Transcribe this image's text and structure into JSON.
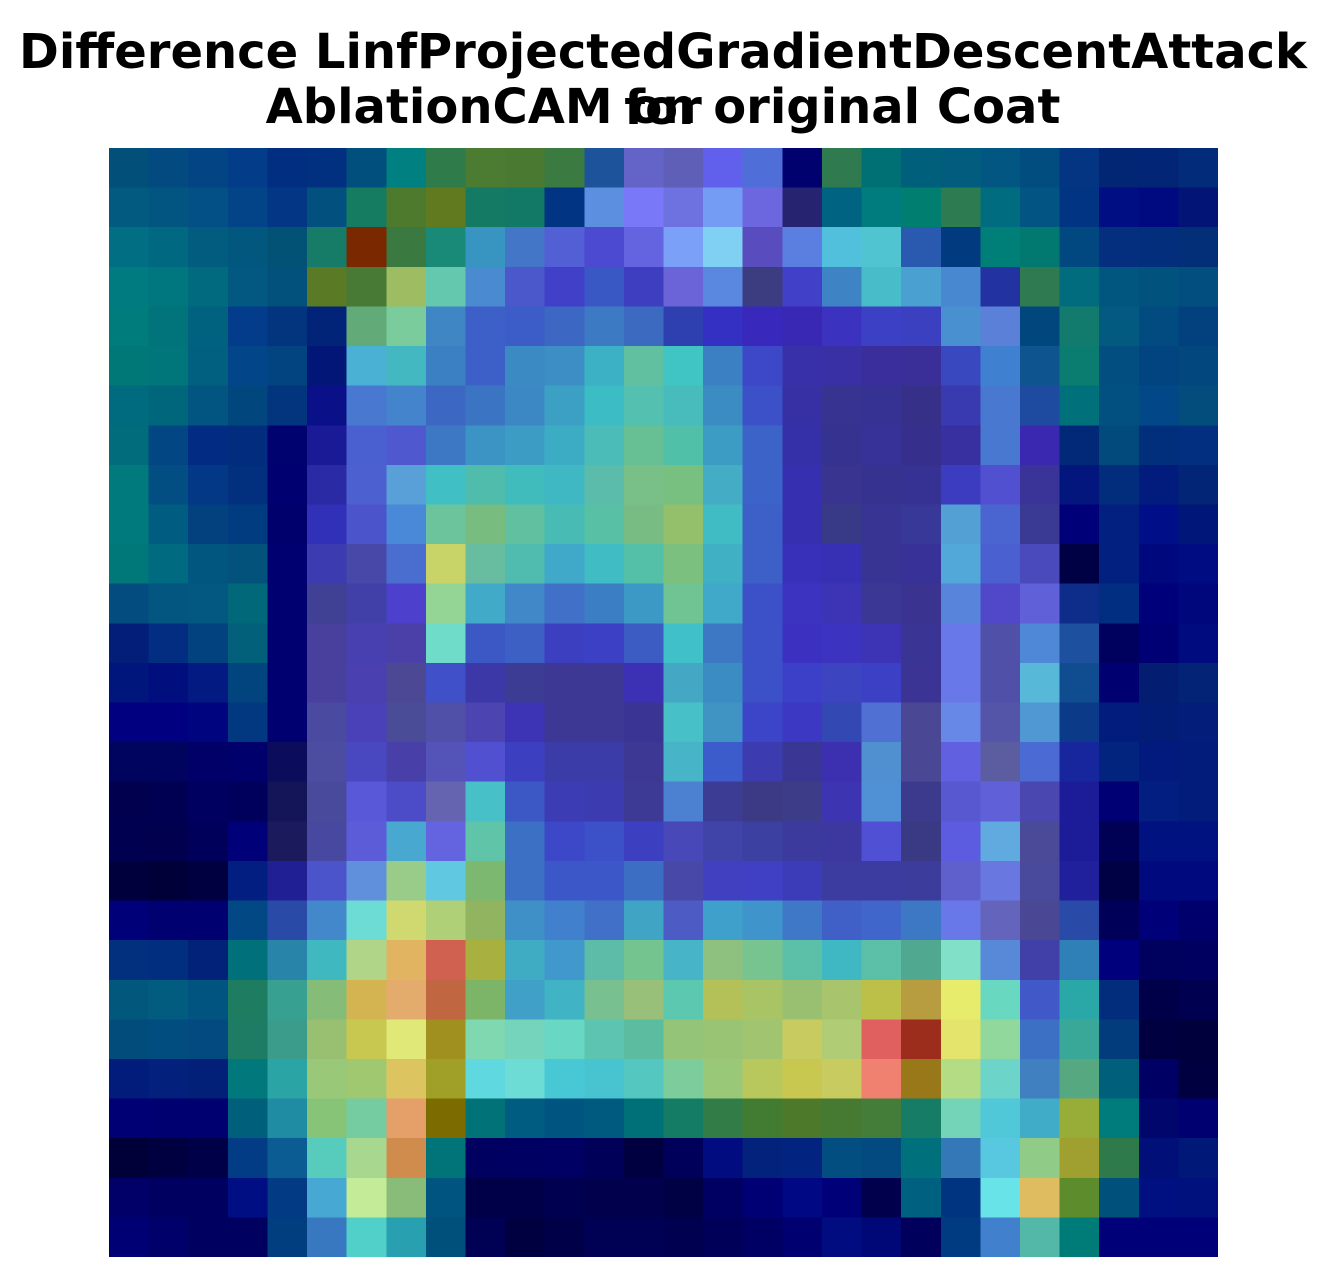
{
  "chart_data": {
    "type": "heatmap",
    "title_lines": [
      "Difference LinfProjectedGradientDescentAttack for",
      "AblationCAM on original Coat"
    ],
    "axes": "off",
    "rows": 28,
    "cols": 28,
    "cells_hex": [
      [
        "#024f7a",
        "#024a80",
        "#034584",
        "#033c88",
        "#022e82",
        "#023080",
        "#014f7c",
        "#008080",
        "#2f7c4a",
        "#4b7c31",
        "#4a7a32",
        "#3b7a40",
        "#1d539b",
        "#6464c8",
        "#605fb8",
        "#6060ec",
        "#506ed8",
        "#00006e",
        "#2f7a4e",
        "#007075",
        "#005f7b",
        "#025c7d",
        "#025782",
        "#024d80",
        "#033582",
        "#022574",
        "#032575",
        "#022c79"
      ],
      [
        "#025a80",
        "#025580",
        "#025085",
        "#034388",
        "#033685",
        "#02507e",
        "#157c62",
        "#4d7a2c",
        "#617a20",
        "#157a64",
        "#127966",
        "#013584",
        "#5c8fdf",
        "#7878f8",
        "#6e72e0",
        "#749cf5",
        "#6c66df",
        "#262470",
        "#006382",
        "#007c7e",
        "#007e70",
        "#2d7b50",
        "#006c80",
        "#025482",
        "#013583",
        "#000e84",
        "#000a80",
        "#021577"
      ],
      [
        "#016e84",
        "#006880",
        "#025c80",
        "#02577f",
        "#025276",
        "#167c68",
        "#7a2800",
        "#3a7a40",
        "#1a8a78",
        "#3895c2",
        "#4476c8",
        "#535fd4",
        "#4b4ad0",
        "#6464e0",
        "#7aa0f8",
        "#80d0f4",
        "#584cbe",
        "#5a7fe0",
        "#50c0dc",
        "#50c4d0",
        "#2a5ab0",
        "#023a80",
        "#007e78",
        "#017870",
        "#024880",
        "#032f7e",
        "#022e7c",
        "#022f78"
      ],
      [
        "#007b80",
        "#00767e",
        "#016a7e",
        "#025880",
        "#02507c",
        "#5b7a26",
        "#487a36",
        "#9ebc62",
        "#64c8ae",
        "#4a8ad0",
        "#4a58cc",
        "#4040c8",
        "#3a58c4",
        "#3e3ec0",
        "#6a64d8",
        "#5a88e0",
        "#3c3c80",
        "#4040c8",
        "#3e84c4",
        "#48bcc8",
        "#4aa0d0",
        "#4888d0",
        "#2232a0",
        "#2f7a50",
        "#006c7e",
        "#015680",
        "#02527e",
        "#024e7e"
      ],
      [
        "#007c7c",
        "#00747a",
        "#016280",
        "#023c8a",
        "#03347e",
        "#022478",
        "#62aa78",
        "#7acc9c",
        "#3e86c4",
        "#3c60c8",
        "#3c5cc8",
        "#3c68c4",
        "#3c7ac4",
        "#3c6ac0",
        "#2e40b0",
        "#3430c4",
        "#3828bc",
        "#3828b4",
        "#3c32c0",
        "#3c40c4",
        "#3a40c0",
        "#4890d0",
        "#5a80d8",
        "#02467e",
        "#137a6e",
        "#025a80",
        "#024b80",
        "#02417e"
      ],
      [
        "#007878",
        "#00767a",
        "#016080",
        "#024588",
        "#024480",
        "#021678",
        "#4ab0d4",
        "#44b8c0",
        "#3c80c4",
        "#3c60c8",
        "#3c8ac4",
        "#3c8ec4",
        "#3cb0c4",
        "#60c0a0",
        "#40c4c4",
        "#3c80c4",
        "#3c48c8",
        "#3830a8",
        "#3830a4",
        "#3a2e9c",
        "#3a2e98",
        "#3a48c0",
        "#4080d0",
        "#0e5590",
        "#0a7c70",
        "#024e80",
        "#024480",
        "#02487e"
      ],
      [
        "#006a7e",
        "#00667c",
        "#015580",
        "#02467e",
        "#02357e",
        "#0a1088",
        "#4878d0",
        "#4484cc",
        "#3c68c4",
        "#3c74c4",
        "#3c88c4",
        "#3ca0c4",
        "#3cbcc4",
        "#54c0b0",
        "#48bcbc",
        "#3c8cc4",
        "#3c50c8",
        "#3630a4",
        "#363490",
        "#363294",
        "#363088",
        "#3a3ab0",
        "#4878d0",
        "#1e4aa0",
        "#00707a",
        "#025080",
        "#024888",
        "#024d7c"
      ],
      [
        "#006c7c",
        "#024684",
        "#022c84",
        "#022c7e",
        "#000270",
        "#1a1a96",
        "#4a60d0",
        "#5058d0",
        "#3c78c4",
        "#3c94c4",
        "#3c9cc4",
        "#3cacc4",
        "#4cbcb8",
        "#66c094",
        "#50c0a8",
        "#3c9cc4",
        "#3c64c8",
        "#3630a8",
        "#363290",
        "#363298",
        "#36308c",
        "#3830a0",
        "#4878d0",
        "#3a28b0",
        "#022878",
        "#024a7c",
        "#022f7c",
        "#022f80"
      ],
      [
        "#007a7c",
        "#024e82",
        "#023886",
        "#02307e",
        "#000070",
        "#2a2aa4",
        "#4d60d0",
        "#5aa0d8",
        "#40c0c4",
        "#50bcac",
        "#40bcbc",
        "#40b8c4",
        "#5cbcac",
        "#78c088",
        "#78c080",
        "#44acc4",
        "#3c64c8",
        "#3630b0",
        "#383490",
        "#363290",
        "#363294",
        "#3c3cc0",
        "#5050d0",
        "#3a3498",
        "#02167e",
        "#022c7c",
        "#021c7e",
        "#022576"
      ],
      [
        "#007a7c",
        "#005c80",
        "#02407e",
        "#023c80",
        "#00006c",
        "#3030b8",
        "#4c54cc",
        "#4a88d8",
        "#6cc49c",
        "#78bc80",
        "#60c0a0",
        "#48bcb4",
        "#58c0a4",
        "#78bc84",
        "#94c06c",
        "#40bcc4",
        "#3c60c8",
        "#3630b0",
        "#383a88",
        "#383494",
        "#383898",
        "#52a0d4",
        "#4a64d0",
        "#3a3a94",
        "#000078",
        "#022080",
        "#000e88",
        "#001678"
      ],
      [
        "#00787a",
        "#006a80",
        "#015680",
        "#02527c",
        "#000070",
        "#3c3cb0",
        "#4848a8",
        "#4a6ed0",
        "#c8d468",
        "#68bca0",
        "#50bcb0",
        "#40a8c8",
        "#40bcc4",
        "#54c0a8",
        "#7cc080",
        "#40b0c4",
        "#3c60c8",
        "#3830b8",
        "#3830b4",
        "#383494",
        "#383298",
        "#52a8d8",
        "#4a60d0",
        "#4a4abc",
        "#000044",
        "#022080",
        "#00087e",
        "#000c82"
      ],
      [
        "#024c80",
        "#025680",
        "#025880",
        "#006878",
        "#000070",
        "#404094",
        "#4040a8",
        "#4c40cc",
        "#94d494",
        "#40aac8",
        "#4088c8",
        "#4070c8",
        "#3c7ec4",
        "#3c98c4",
        "#70c494",
        "#40a8c8",
        "#3c50c8",
        "#3c34c0",
        "#3c34b4",
        "#3a3894",
        "#3a3490",
        "#5884dc",
        "#5048c8",
        "#6060d8",
        "#0e2c8a",
        "#012e80",
        "#00007a",
        "#00067c"
      ],
      [
        "#021e78",
        "#022d80",
        "#02427e",
        "#02607a",
        "#000070",
        "#48409c",
        "#4840b0",
        "#4a40a8",
        "#6edcc8",
        "#3c58c4",
        "#3c60c4",
        "#3c40c0",
        "#3c40c4",
        "#3c5cc4",
        "#40c0c8",
        "#3c78c4",
        "#3c50c8",
        "#3c30c0",
        "#3c34c0",
        "#3c34b4",
        "#3a3494",
        "#6878e8",
        "#5050a8",
        "#5088d8",
        "#1e50a0",
        "#00005e",
        "#000074",
        "#000b80"
      ],
      [
        "#00167c",
        "#000e7e",
        "#021a82",
        "#02447e",
        "#000070",
        "#48409c",
        "#4a40b0",
        "#4c4894",
        "#4050c8",
        "#3c38a8",
        "#3c3c94",
        "#3c3894",
        "#3c3894",
        "#3c30b4",
        "#44a8c4",
        "#3c8cc4",
        "#3c50c8",
        "#3c40c8",
        "#3c44c0",
        "#3c40c4",
        "#3c3494",
        "#6878e8",
        "#5050a8",
        "#58b8d8",
        "#104c90",
        "#000070",
        "#031e70",
        "#032476"
      ],
      [
        "#000080",
        "#000080",
        "#00047e",
        "#023880",
        "#000070",
        "#4a4aa0",
        "#4a40b8",
        "#4a4c98",
        "#5050a8",
        "#4c44b0",
        "#3c34b4",
        "#3c3894",
        "#3c3894",
        "#3a3494",
        "#48c0c8",
        "#4094c4",
        "#3c44c8",
        "#3c38c4",
        "#3448b4",
        "#5070d4",
        "#4a4894",
        "#6888e8",
        "#5454a8",
        "#5098d4",
        "#0a3a88",
        "#021c7e",
        "#021d76",
        "#021e7a"
      ],
      [
        "#00045e",
        "#00045e",
        "#000068",
        "#00006c",
        "#0c0c5c",
        "#4c4ca0",
        "#4a48c0",
        "#4840a8",
        "#5454b8",
        "#5050d0",
        "#3c40c0",
        "#3c3ca8",
        "#3c3ca8",
        "#3c3894",
        "#48b4c8",
        "#3c5ccc",
        "#3c3cb0",
        "#3a3694",
        "#3c30b0",
        "#5090d0",
        "#4a4894",
        "#6060e0",
        "#5c5ca0",
        "#4c6ad4",
        "#18269e",
        "#02247e",
        "#021a7e",
        "#021c7c"
      ],
      [
        "#00004e",
        "#000052",
        "#000060",
        "#00005c",
        "#141458",
        "#4a4a9c",
        "#5858d8",
        "#4c4cc8",
        "#6464b0",
        "#48c0c8",
        "#3c58c4",
        "#3c3cb4",
        "#3c3cb0",
        "#3c3a94",
        "#4c80d0",
        "#3c3c94",
        "#3c3a84",
        "#3c3c88",
        "#3c34b0",
        "#5090d4",
        "#3c3a8c",
        "#5858d0",
        "#6060d8",
        "#4a48b0",
        "#1c1c98",
        "#000074",
        "#021e80",
        "#021c7c"
      ],
      [
        "#000050",
        "#00004e",
        "#00005a",
        "#000078",
        "#1a1a5c",
        "#4848a0",
        "#5c5cd8",
        "#48a8d0",
        "#6464e0",
        "#60c4a8",
        "#3c70c4",
        "#3c48c8",
        "#3c50c8",
        "#3c40c0",
        "#4848b8",
        "#4044a8",
        "#3c40a0",
        "#3c3a9c",
        "#3c38a0",
        "#5050d4",
        "#3a3a84",
        "#5c5ce0",
        "#60aae0",
        "#4a4a98",
        "#1c1c98",
        "#000054",
        "#001280",
        "#001280"
      ],
      [
        "#00003c",
        "#000038",
        "#000040",
        "#021e80",
        "#202094",
        "#4c54cc",
        "#6090dc",
        "#98cc88",
        "#60c8e0",
        "#7cb870",
        "#3c70c4",
        "#3c58c8",
        "#3c58c8",
        "#3c6ec4",
        "#4848a8",
        "#4040c0",
        "#4040c4",
        "#3c3cb8",
        "#3c3ca0",
        "#3c3ca0",
        "#3c3c9c",
        "#6060cc",
        "#6878e0",
        "#4a4a9c",
        "#20209c",
        "#000044",
        "#000a7e",
        "#000a7e"
      ],
      [
        "#000078",
        "#000070",
        "#000070",
        "#024884",
        "#2a4aa8",
        "#4488cc",
        "#6cdcd4",
        "#d0d870",
        "#b0d078",
        "#90b460",
        "#4090c8",
        "#4080cc",
        "#4070c8",
        "#40a4c4",
        "#4c5cc4",
        "#40a0cc",
        "#4094cc",
        "#4078c8",
        "#4060c8",
        "#4066cc",
        "#3c78c4",
        "#6878e8",
        "#6464bc",
        "#4a4894",
        "#2a4aa8",
        "#000058",
        "#000078",
        "#00006c"
      ],
      [
        "#02307e",
        "#022e80",
        "#022178",
        "#00707a",
        "#2884a8",
        "#40b8c0",
        "#b0d488",
        "#e0b460",
        "#d06050",
        "#a8b040",
        "#40acc4",
        "#4098cc",
        "#5cbca8",
        "#74c490",
        "#48b4c8",
        "#8ec080",
        "#78c490",
        "#5cc0a8",
        "#40b8c4",
        "#5cc0a8",
        "#50a890",
        "#80e0c8",
        "#5888d8",
        "#4040a8",
        "#3080b8",
        "#00007c",
        "#00005e",
        "#000060"
      ],
      [
        "#02587c",
        "#025c80",
        "#025480",
        "#1e7c60",
        "#38a090",
        "#84bc78",
        "#d4b450",
        "#e4ac6c",
        "#c06640",
        "#7cb468",
        "#40a0c8",
        "#40b4c4",
        "#78c090",
        "#98c078",
        "#5cc8b0",
        "#b4c058",
        "#a8c464",
        "#98c070",
        "#a8c46c",
        "#bcc048",
        "#b89c40",
        "#e8ec6c",
        "#68d8c0",
        "#4058c8",
        "#2aa8a8",
        "#022c7c",
        "#000048",
        "#000050"
      ],
      [
        "#024c7c",
        "#024d80",
        "#024a80",
        "#1e7c64",
        "#3c9c8c",
        "#98c070",
        "#c8c850",
        "#e0e878",
        "#a09020",
        "#80d8b0",
        "#74d4bc",
        "#68d8c4",
        "#5cc4b0",
        "#5cbca0",
        "#94c478",
        "#98c474",
        "#a0c470",
        "#c8cc60",
        "#b0cc74",
        "#e06060",
        "#9c2c1c",
        "#e4e46c",
        "#90d89c",
        "#3c70c4",
        "#3aa898",
        "#023c7c",
        "#000040",
        "#00003c"
      ],
      [
        "#021c7c",
        "#02207c",
        "#022078",
        "#00787c",
        "#2aa4a4",
        "#98c878",
        "#a0c870",
        "#dcc460",
        "#a0a028",
        "#60d8e0",
        "#6cdcd4",
        "#48c8d4",
        "#48c4d0",
        "#54c8c0",
        "#7ccc9c",
        "#98c878",
        "#b8c85c",
        "#c8c850",
        "#c8cc60",
        "#f08070",
        "#987818",
        "#b4dc84",
        "#6cd4c8",
        "#4080c0",
        "#56a880",
        "#00607c",
        "#000064",
        "#000040"
      ],
      [
        "#000074",
        "#000070",
        "#000070",
        "#00607c",
        "#208ca4",
        "#88c478",
        "#74cca0",
        "#e4a068",
        "#7c6c00",
        "#007278",
        "#005c80",
        "#005480",
        "#005a80",
        "#007078",
        "#147c64",
        "#327c48",
        "#427c32",
        "#4c7a2a",
        "#467a32",
        "#447c3a",
        "#167c66",
        "#74d4b8",
        "#50c8d8",
        "#40acc8",
        "#98ac38",
        "#007c7c",
        "#00066c",
        "#000070"
      ],
      [
        "#000038",
        "#000040",
        "#000048",
        "#023c84",
        "#0c5c94",
        "#58ccbc",
        "#a8d890",
        "#d08c4c",
        "#007478",
        "#000060",
        "#000062",
        "#000064",
        "#000058",
        "#000040",
        "#00005a",
        "#000c80",
        "#02227c",
        "#022480",
        "#024e80",
        "#024a80",
        "#00707c",
        "#3478b8",
        "#58c8e0",
        "#90cc88",
        "#a0a030",
        "#2e7a4a",
        "#001078",
        "#001878"
      ],
      [
        "#000068",
        "#000060",
        "#000060",
        "#000e84",
        "#023a84",
        "#48a8d4",
        "#c4ec98",
        "#88bc78",
        "#005480",
        "#000048",
        "#000048",
        "#000050",
        "#00004c",
        "#00004c",
        "#000044",
        "#000062",
        "#000074",
        "#000884",
        "#000078",
        "#00004c",
        "#006080",
        "#003480",
        "#68e4e8",
        "#e0bc60",
        "#5c8c2c",
        "#00507c",
        "#001080",
        "#00107c"
      ],
      [
        "#000074",
        "#00006a",
        "#000060",
        "#000060",
        "#003e80",
        "#3878c0",
        "#50d0c8",
        "#28a0b0",
        "#00507c",
        "#000054",
        "#000040",
        "#000048",
        "#000054",
        "#000054",
        "#000050",
        "#000058",
        "#000064",
        "#000070",
        "#000c80",
        "#000878",
        "#00005c",
        "#003a80",
        "#4080cc",
        "#54b8a8",
        "#007c78",
        "#000078",
        "#000078",
        "#000078"
      ]
    ]
  }
}
